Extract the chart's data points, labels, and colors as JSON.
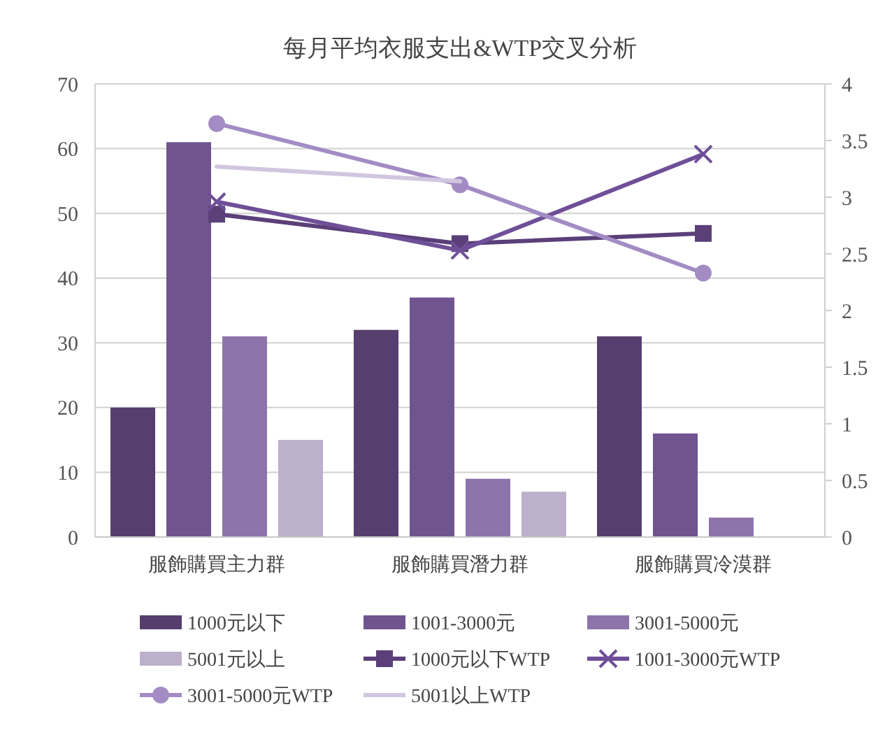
{
  "chart_data": {
    "type": "bar",
    "title": "每月平均衣服支出&WTP交叉分析",
    "categories": [
      "服飾購買主力群",
      "服飾購買潛力群",
      "服飾購買冷漠群"
    ],
    "series": [
      {
        "name": "1000元以下",
        "color": "#563f6e",
        "values": [
          20,
          32,
          31
        ]
      },
      {
        "name": "1001-3000元",
        "color": "#6f5490",
        "values": [
          61,
          37,
          16
        ]
      },
      {
        "name": "3001-5000元",
        "color": "#8d74ab",
        "values": [
          31,
          9,
          3
        ]
      },
      {
        "name": "5001元以上",
        "color": "#bcb0cc",
        "values": [
          15,
          7,
          null
        ]
      },
      {
        "name": "1000元以下WTP",
        "type": "line",
        "axis": "y2",
        "marker": "square",
        "color": "#5a3f78",
        "values": [
          2.85,
          2.59,
          2.68
        ]
      },
      {
        "name": "1001-3000元WTP",
        "type": "line",
        "axis": "y2",
        "marker": "cross",
        "color": "#6f4f98",
        "values": [
          2.96,
          2.53,
          3.38
        ]
      },
      {
        "name": "3001-5000元WTP",
        "type": "line",
        "axis": "y2",
        "marker": "circle",
        "color": "#a38cc4",
        "values": [
          3.65,
          3.11,
          2.33
        ]
      },
      {
        "name": "5001以上WTP",
        "type": "line",
        "axis": "y2",
        "marker": "none",
        "color": "#d0c6df",
        "values": [
          3.27,
          3.14,
          null
        ]
      }
    ],
    "ylim": [
      0,
      70
    ],
    "yticks": [
      0,
      10,
      20,
      30,
      40,
      50,
      60,
      70
    ],
    "y2lim": [
      0,
      4
    ],
    "y2ticks": [
      0,
      {
        "value": 0.5,
        "label": "0.5"
      },
      1,
      {
        "value": 1.5,
        "label": "1.5"
      },
      2,
      {
        "value": 2.5,
        "label": "2.5"
      },
      3,
      {
        "value": 3.5,
        "label": "3.5"
      },
      4
    ],
    "grid": "y",
    "legend": "bottom"
  }
}
